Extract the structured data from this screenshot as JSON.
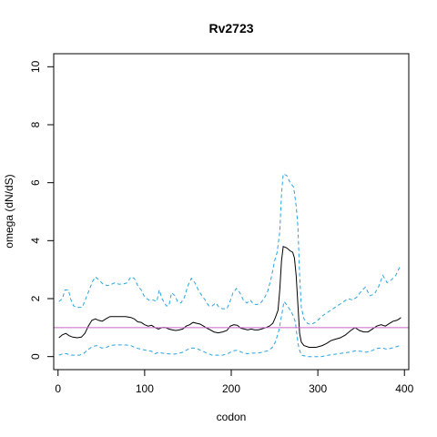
{
  "chart_data": {
    "type": "line",
    "title": "Rv2723",
    "xlabel": "codon",
    "ylabel": "omega (dN/dS)",
    "xlim": [
      -5,
      405
    ],
    "ylim": [
      -0.45,
      10.45
    ],
    "x_ticks": [
      0,
      100,
      200,
      300,
      400
    ],
    "y_ticks": [
      0,
      2,
      4,
      6,
      8,
      10
    ],
    "reference_line": {
      "y": 1,
      "color": "#cc66cc"
    },
    "grid": false,
    "legend": "none",
    "series": [
      {
        "style": "dashed",
        "color": "#29a3e0",
        "points": [
          [
            1,
            1.9
          ],
          [
            5,
            2.0
          ],
          [
            8,
            2.3
          ],
          [
            12,
            2.3
          ],
          [
            15,
            1.95
          ],
          [
            18,
            1.75
          ],
          [
            22,
            1.7
          ],
          [
            28,
            1.7
          ],
          [
            32,
            2.0
          ],
          [
            36,
            2.3
          ],
          [
            40,
            2.6
          ],
          [
            43,
            2.75
          ],
          [
            47,
            2.65
          ],
          [
            52,
            2.5
          ],
          [
            57,
            2.45
          ],
          [
            62,
            2.5
          ],
          [
            66,
            2.55
          ],
          [
            70,
            2.5
          ],
          [
            75,
            2.5
          ],
          [
            80,
            2.55
          ],
          [
            84,
            2.75
          ],
          [
            88,
            2.7
          ],
          [
            92,
            2.45
          ],
          [
            96,
            2.3
          ],
          [
            100,
            2.05
          ],
          [
            105,
            1.95
          ],
          [
            110,
            1.95
          ],
          [
            114,
            1.9
          ],
          [
            117,
            2.3
          ],
          [
            120,
            2.0
          ],
          [
            125,
            1.75
          ],
          [
            128,
            1.75
          ],
          [
            131,
            2.2
          ],
          [
            135,
            2.1
          ],
          [
            138,
            1.9
          ],
          [
            142,
            1.85
          ],
          [
            146,
            2.05
          ],
          [
            150,
            2.45
          ],
          [
            154,
            2.7
          ],
          [
            158,
            2.55
          ],
          [
            162,
            2.3
          ],
          [
            166,
            2.1
          ],
          [
            170,
            1.95
          ],
          [
            174,
            1.75
          ],
          [
            178,
            1.75
          ],
          [
            182,
            1.85
          ],
          [
            186,
            1.7
          ],
          [
            190,
            1.65
          ],
          [
            195,
            1.65
          ],
          [
            198,
            1.85
          ],
          [
            202,
            2.2
          ],
          [
            206,
            2.35
          ],
          [
            210,
            2.2
          ],
          [
            214,
            1.95
          ],
          [
            218,
            1.85
          ],
          [
            222,
            1.95
          ],
          [
            226,
            1.8
          ],
          [
            230,
            1.8
          ],
          [
            234,
            1.85
          ],
          [
            238,
            2.0
          ],
          [
            242,
            2.25
          ],
          [
            246,
            2.7
          ],
          [
            250,
            3.3
          ],
          [
            253,
            3.6
          ],
          [
            256,
            4.3
          ],
          [
            258,
            5.6
          ],
          [
            260,
            6.3
          ],
          [
            264,
            6.25
          ],
          [
            268,
            6.0
          ],
          [
            272,
            5.85
          ],
          [
            275,
            5.2
          ],
          [
            277,
            4.5
          ],
          [
            279,
            2.8
          ],
          [
            281,
            1.7
          ],
          [
            284,
            1.3
          ],
          [
            288,
            1.15
          ],
          [
            292,
            1.1
          ],
          [
            298,
            1.2
          ],
          [
            305,
            1.4
          ],
          [
            310,
            1.5
          ],
          [
            315,
            1.6
          ],
          [
            320,
            1.7
          ],
          [
            325,
            1.8
          ],
          [
            330,
            1.9
          ],
          [
            335,
            2.0
          ],
          [
            340,
            1.95
          ],
          [
            345,
            2.05
          ],
          [
            350,
            2.25
          ],
          [
            355,
            2.4
          ],
          [
            360,
            2.1
          ],
          [
            365,
            2.15
          ],
          [
            370,
            2.4
          ],
          [
            375,
            2.8
          ],
          [
            380,
            2.55
          ],
          [
            385,
            2.65
          ],
          [
            390,
            2.8
          ],
          [
            393,
            3.0
          ],
          [
            396,
            3.15
          ]
        ]
      },
      {
        "style": "solid",
        "color": "#000000",
        "points": [
          [
            1,
            0.65
          ],
          [
            5,
            0.75
          ],
          [
            9,
            0.8
          ],
          [
            13,
            0.72
          ],
          [
            17,
            0.67
          ],
          [
            22,
            0.65
          ],
          [
            27,
            0.67
          ],
          [
            31,
            0.8
          ],
          [
            35,
            1.05
          ],
          [
            39,
            1.25
          ],
          [
            43,
            1.3
          ],
          [
            47,
            1.25
          ],
          [
            51,
            1.22
          ],
          [
            55,
            1.3
          ],
          [
            60,
            1.38
          ],
          [
            66,
            1.38
          ],
          [
            72,
            1.38
          ],
          [
            78,
            1.38
          ],
          [
            84,
            1.35
          ],
          [
            88,
            1.3
          ],
          [
            92,
            1.2
          ],
          [
            96,
            1.18
          ],
          [
            100,
            1.1
          ],
          [
            104,
            1.05
          ],
          [
            108,
            1.08
          ],
          [
            112,
            1.0
          ],
          [
            116,
            0.95
          ],
          [
            120,
            1.0
          ],
          [
            124,
            1.0
          ],
          [
            128,
            0.95
          ],
          [
            132,
            0.92
          ],
          [
            136,
            0.9
          ],
          [
            140,
            0.92
          ],
          [
            144,
            0.95
          ],
          [
            148,
            1.05
          ],
          [
            152,
            1.1
          ],
          [
            156,
            1.18
          ],
          [
            160,
            1.15
          ],
          [
            164,
            1.12
          ],
          [
            168,
            1.05
          ],
          [
            172,
            0.98
          ],
          [
            176,
            0.92
          ],
          [
            180,
            0.85
          ],
          [
            185,
            0.82
          ],
          [
            190,
            0.85
          ],
          [
            195,
            0.9
          ],
          [
            199,
            1.05
          ],
          [
            203,
            1.1
          ],
          [
            207,
            1.08
          ],
          [
            211,
            0.98
          ],
          [
            215,
            0.95
          ],
          [
            219,
            0.92
          ],
          [
            223,
            0.95
          ],
          [
            227,
            0.92
          ],
          [
            231,
            0.92
          ],
          [
            235,
            0.95
          ],
          [
            240,
            1.0
          ],
          [
            244,
            1.05
          ],
          [
            248,
            1.15
          ],
          [
            251,
            1.35
          ],
          [
            254,
            1.6
          ],
          [
            256,
            2.3
          ],
          [
            258,
            3.3
          ],
          [
            260,
            3.8
          ],
          [
            264,
            3.75
          ],
          [
            268,
            3.65
          ],
          [
            271,
            3.6
          ],
          [
            273,
            3.4
          ],
          [
            275,
            2.8
          ],
          [
            277,
            1.8
          ],
          [
            279,
            0.8
          ],
          [
            281,
            0.5
          ],
          [
            284,
            0.38
          ],
          [
            290,
            0.32
          ],
          [
            298,
            0.32
          ],
          [
            305,
            0.38
          ],
          [
            310,
            0.45
          ],
          [
            315,
            0.55
          ],
          [
            320,
            0.6
          ],
          [
            326,
            0.65
          ],
          [
            332,
            0.75
          ],
          [
            338,
            0.9
          ],
          [
            343,
            1.0
          ],
          [
            348,
            0.9
          ],
          [
            353,
            0.85
          ],
          [
            358,
            0.85
          ],
          [
            363,
            0.95
          ],
          [
            368,
            1.05
          ],
          [
            373,
            1.1
          ],
          [
            378,
            1.05
          ],
          [
            383,
            1.15
          ],
          [
            387,
            1.22
          ],
          [
            391,
            1.25
          ],
          [
            394,
            1.3
          ],
          [
            396,
            1.35
          ]
        ]
      },
      {
        "style": "dashed",
        "color": "#29a3e0",
        "points": [
          [
            1,
            0.05
          ],
          [
            6,
            0.1
          ],
          [
            10,
            0.1
          ],
          [
            14,
            0.05
          ],
          [
            19,
            0.05
          ],
          [
            25,
            0.05
          ],
          [
            30,
            0.12
          ],
          [
            35,
            0.25
          ],
          [
            40,
            0.35
          ],
          [
            45,
            0.38
          ],
          [
            50,
            0.3
          ],
          [
            55,
            0.3
          ],
          [
            60,
            0.38
          ],
          [
            66,
            0.4
          ],
          [
            72,
            0.4
          ],
          [
            78,
            0.4
          ],
          [
            84,
            0.38
          ],
          [
            90,
            0.3
          ],
          [
            96,
            0.25
          ],
          [
            102,
            0.22
          ],
          [
            108,
            0.18
          ],
          [
            112,
            0.1
          ],
          [
            116,
            0.15
          ],
          [
            120,
            0.12
          ],
          [
            126,
            0.1
          ],
          [
            132,
            0.08
          ],
          [
            138,
            0.1
          ],
          [
            144,
            0.15
          ],
          [
            150,
            0.25
          ],
          [
            155,
            0.3
          ],
          [
            160,
            0.28
          ],
          [
            166,
            0.2
          ],
          [
            172,
            0.12
          ],
          [
            178,
            0.05
          ],
          [
            184,
            0.05
          ],
          [
            190,
            0.05
          ],
          [
            196,
            0.1
          ],
          [
            202,
            0.2
          ],
          [
            207,
            0.22
          ],
          [
            212,
            0.15
          ],
          [
            218,
            0.1
          ],
          [
            224,
            0.12
          ],
          [
            230,
            0.12
          ],
          [
            236,
            0.15
          ],
          [
            242,
            0.2
          ],
          [
            247,
            0.3
          ],
          [
            251,
            0.5
          ],
          [
            255,
            0.9
          ],
          [
            258,
            1.4
          ],
          [
            261,
            1.9
          ],
          [
            265,
            1.75
          ],
          [
            268,
            1.6
          ],
          [
            271,
            1.45
          ],
          [
            274,
            1.2
          ],
          [
            276,
            0.7
          ],
          [
            278,
            0.3
          ],
          [
            281,
            0.05
          ],
          [
            288,
            0.0
          ],
          [
            296,
            0.0
          ],
          [
            304,
            0.0
          ],
          [
            312,
            0.05
          ],
          [
            320,
            0.08
          ],
          [
            328,
            0.12
          ],
          [
            336,
            0.15
          ],
          [
            344,
            0.2
          ],
          [
            350,
            0.18
          ],
          [
            356,
            0.15
          ],
          [
            362,
            0.2
          ],
          [
            368,
            0.28
          ],
          [
            374,
            0.3
          ],
          [
            380,
            0.25
          ],
          [
            386,
            0.3
          ],
          [
            392,
            0.35
          ],
          [
            396,
            0.4
          ]
        ]
      }
    ]
  }
}
